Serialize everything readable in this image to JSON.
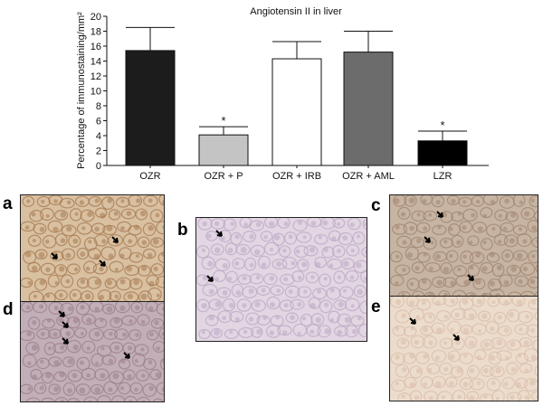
{
  "chart_data": {
    "type": "bar",
    "title": "Angiotensin II in liver",
    "ylabel": "Percentage of immunostaining/mm²",
    "xlabel": "",
    "categories": [
      "OZR",
      "OZR + P",
      "OZR + IRB",
      "OZR + AML",
      "LZR"
    ],
    "values": [
      15.4,
      4.1,
      14.3,
      15.2,
      3.3
    ],
    "errors": [
      3.1,
      1.1,
      2.3,
      2.8,
      1.3
    ],
    "significance": [
      "",
      "*",
      "",
      "",
      "*"
    ],
    "fills": [
      "#1c1c1c",
      "#c4c4c4",
      "#ffffff",
      "#6c6c6c",
      "#000000"
    ],
    "ylim": [
      0,
      20
    ],
    "yticks": [
      0,
      2,
      4,
      6,
      8,
      10,
      12,
      14,
      16,
      18,
      20
    ],
    "grid": false,
    "legend": "none"
  },
  "panels": [
    {
      "id": "a",
      "letter": "a",
      "tint": "#a67850",
      "tint2": "#d8c0a0"
    },
    {
      "id": "b",
      "letter": "b",
      "tint": "#b9a7c4",
      "tint2": "#e2d6e2"
    },
    {
      "id": "c",
      "letter": "c",
      "tint": "#9e8470",
      "tint2": "#c7b4a2"
    },
    {
      "id": "d",
      "letter": "d",
      "tint": "#9a7d86",
      "tint2": "#c2aeb8"
    },
    {
      "id": "e",
      "letter": "e",
      "tint": "#d9bca8",
      "tint2": "#ecdccc"
    }
  ]
}
